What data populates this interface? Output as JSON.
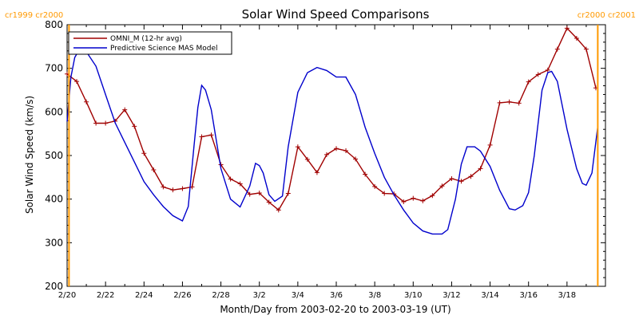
{
  "chart_data": {
    "type": "line",
    "title": "Solar Wind Speed Comparisons",
    "xlabel": "Month/Day from 2003-02-20 to 2003-03-19 (UT)",
    "ylabel": "Solar Wind Speed (km/s)",
    "xlim": [
      0,
      28
    ],
    "ylim": [
      200,
      800
    ],
    "yticks": [
      200,
      300,
      400,
      500,
      600,
      700,
      800
    ],
    "xticks": [
      {
        "day": 0,
        "label": "2/20"
      },
      {
        "day": 2,
        "label": "2/22"
      },
      {
        "day": 4,
        "label": "2/24"
      },
      {
        "day": 6,
        "label": "2/26"
      },
      {
        "day": 8,
        "label": "2/28"
      },
      {
        "day": 10,
        "label": "3/2"
      },
      {
        "day": 12,
        "label": "3/4"
      },
      {
        "day": 14,
        "label": "3/6"
      },
      {
        "day": 16,
        "label": "3/8"
      },
      {
        "day": 18,
        "label": "3/10"
      },
      {
        "day": 20,
        "label": "3/12"
      },
      {
        "day": 22,
        "label": "3/14"
      },
      {
        "day": 24,
        "label": "3/16"
      },
      {
        "day": 26,
        "label": "3/18"
      }
    ],
    "rotation_markers": [
      {
        "day": 0.1,
        "label": "cr1999 cr2000",
        "side": "left"
      },
      {
        "day": 27.6,
        "label": "cr2000 cr2001",
        "side": "right"
      }
    ],
    "rotation_color": "#ff9900",
    "legend_position": "top-left",
    "series": [
      {
        "name": "OMNI_M (12-hr avg)",
        "color": "#a00000",
        "marker": "plus",
        "points": [
          [
            0,
            687
          ],
          [
            0.5,
            670
          ],
          [
            1,
            623
          ],
          [
            1.5,
            574
          ],
          [
            2,
            574
          ],
          [
            2.5,
            579
          ],
          [
            3,
            605
          ],
          [
            3.5,
            567
          ],
          [
            4,
            505
          ],
          [
            4.5,
            467
          ],
          [
            5,
            428
          ],
          [
            5.5,
            421
          ],
          [
            6,
            424
          ],
          [
            6.5,
            428
          ],
          [
            7,
            543
          ],
          [
            7.5,
            547
          ],
          [
            8,
            479
          ],
          [
            8.5,
            446
          ],
          [
            9,
            435
          ],
          [
            9.5,
            411
          ],
          [
            10,
            414
          ],
          [
            10.5,
            393
          ],
          [
            11,
            375
          ],
          [
            11.5,
            413
          ],
          [
            12,
            520
          ],
          [
            12.5,
            491
          ],
          [
            13,
            461
          ],
          [
            13.5,
            502
          ],
          [
            14,
            516
          ],
          [
            14.5,
            511
          ],
          [
            15,
            492
          ],
          [
            15.5,
            457
          ],
          [
            16,
            429
          ],
          [
            16.5,
            413
          ],
          [
            17,
            412
          ],
          [
            17.5,
            394
          ],
          [
            18,
            402
          ],
          [
            18.5,
            396
          ],
          [
            19,
            408
          ],
          [
            19.5,
            430
          ],
          [
            20,
            447
          ],
          [
            20.5,
            441
          ],
          [
            21,
            452
          ],
          [
            21.5,
            470
          ],
          [
            22,
            524
          ],
          [
            22.5,
            621
          ],
          [
            23,
            623
          ],
          [
            23.5,
            620
          ],
          [
            24,
            669
          ],
          [
            24.5,
            686
          ],
          [
            25,
            696
          ],
          [
            25.5,
            744
          ],
          [
            26,
            792
          ],
          [
            26.5,
            769
          ],
          [
            27,
            744
          ],
          [
            27.5,
            655
          ]
        ]
      },
      {
        "name": "Predictive Science MAS Model",
        "color": "#0000cc",
        "marker": "none",
        "points": [
          [
            0,
            578
          ],
          [
            0.2,
            680
          ],
          [
            0.4,
            725
          ],
          [
            0.6,
            740
          ],
          [
            0.8,
            742
          ],
          [
            1,
            738
          ],
          [
            1.5,
            705
          ],
          [
            2,
            640
          ],
          [
            2.5,
            575
          ],
          [
            3,
            530
          ],
          [
            3.5,
            485
          ],
          [
            4,
            440
          ],
          [
            4.5,
            410
          ],
          [
            5,
            383
          ],
          [
            5.5,
            362
          ],
          [
            6,
            350
          ],
          [
            6.3,
            383
          ],
          [
            6.6,
            522
          ],
          [
            6.8,
            610
          ],
          [
            7,
            661
          ],
          [
            7.2,
            650
          ],
          [
            7.5,
            605
          ],
          [
            8,
            470
          ],
          [
            8.5,
            400
          ],
          [
            9,
            382
          ],
          [
            9.5,
            430
          ],
          [
            9.8,
            482
          ],
          [
            10,
            477
          ],
          [
            10.2,
            460
          ],
          [
            10.5,
            410
          ],
          [
            10.8,
            395
          ],
          [
            11.2,
            407
          ],
          [
            11.5,
            520
          ],
          [
            12,
            645
          ],
          [
            12.5,
            690
          ],
          [
            13,
            702
          ],
          [
            13.5,
            695
          ],
          [
            14,
            680
          ],
          [
            14.5,
            680
          ],
          [
            15,
            640
          ],
          [
            15.5,
            565
          ],
          [
            16,
            505
          ],
          [
            16.5,
            450
          ],
          [
            17,
            410
          ],
          [
            17.5,
            375
          ],
          [
            18,
            345
          ],
          [
            18.5,
            327
          ],
          [
            19,
            320
          ],
          [
            19.5,
            320
          ],
          [
            19.8,
            330
          ],
          [
            20.2,
            400
          ],
          [
            20.5,
            480
          ],
          [
            20.8,
            520
          ],
          [
            21.2,
            520
          ],
          [
            21.5,
            510
          ],
          [
            22,
            475
          ],
          [
            22.5,
            420
          ],
          [
            23,
            378
          ],
          [
            23.3,
            375
          ],
          [
            23.7,
            385
          ],
          [
            24,
            415
          ],
          [
            24.3,
            500
          ],
          [
            24.7,
            650
          ],
          [
            25,
            690
          ],
          [
            25.2,
            693
          ],
          [
            25.5,
            670
          ],
          [
            26,
            560
          ],
          [
            26.5,
            470
          ],
          [
            26.8,
            436
          ],
          [
            27,
            432
          ],
          [
            27.3,
            460
          ],
          [
            27.6,
            567
          ]
        ]
      }
    ]
  }
}
